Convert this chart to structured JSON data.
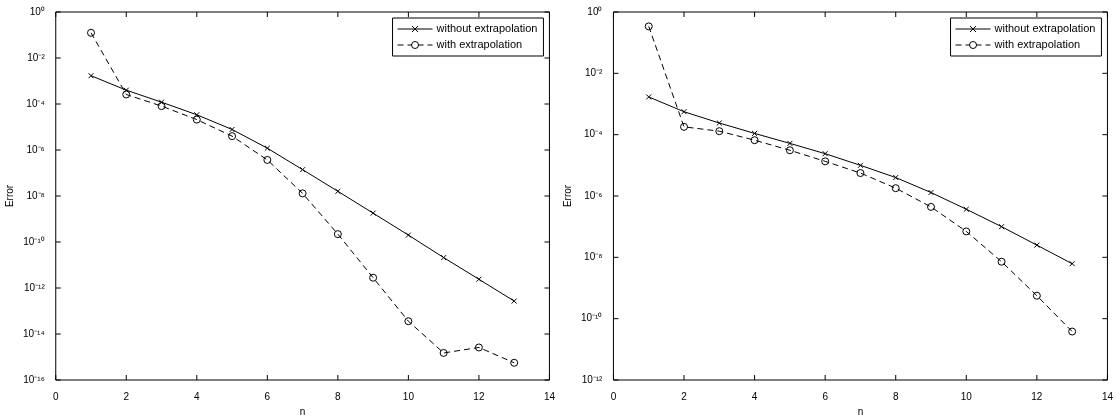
{
  "chart_data": [
    {
      "type": "line",
      "xlabel": "n",
      "ylabel": "Error",
      "log": "y",
      "legend": "top right",
      "x": [
        1,
        2,
        3,
        4,
        5,
        6,
        7,
        8,
        9,
        10,
        11,
        12,
        13
      ],
      "xlim": [
        0,
        14
      ],
      "xticks": [
        0,
        2,
        4,
        6,
        8,
        10,
        12,
        14
      ],
      "ylim": [
        1e-16,
        1
      ],
      "yticks": [
        {
          "value": 1e-16,
          "label": "10⁻¹⁶"
        },
        {
          "value": 1e-14,
          "label": "10⁻¹⁴"
        },
        {
          "value": 1e-12,
          "label": "10⁻¹²"
        },
        {
          "value": 1e-10,
          "label": "10⁻¹⁰"
        },
        {
          "value": 1e-08,
          "label": "10⁻⁸"
        },
        {
          "value": 1e-06,
          "label": "10⁻⁶"
        },
        {
          "value": 0.0001,
          "label": "10⁻⁴"
        },
        {
          "value": 0.01,
          "label": "10⁻²"
        },
        {
          "value": 1,
          "label": "10⁰"
        }
      ],
      "series": [
        {
          "name": "without extrapolation",
          "color": "#000000",
          "marker": "cross",
          "line_style": "solid",
          "values": [
            0.0017,
            0.0004,
            0.00012,
            3.4e-05,
            7.8e-06,
            1.2e-06,
            1.4e-07,
            1.6e-08,
            1.8e-09,
            2e-10,
            2.1e-11,
            2.4e-12,
            2.7e-13
          ]
        },
        {
          "name": "with extrapolation",
          "color": "#000000",
          "marker": "circle",
          "line_style": "dashed",
          "values": [
            0.125,
            0.00026,
            8.1e-05,
            2.1e-05,
            4e-06,
            3.7e-07,
            1.3e-08,
            2.2e-10,
            2.8e-12,
            3.6e-14,
            1.5e-15,
            2.6e-15,
            5.6e-16
          ]
        }
      ]
    },
    {
      "type": "line",
      "xlabel": "n",
      "ylabel": "Error",
      "log": "y",
      "legend": "top right",
      "x": [
        1,
        2,
        3,
        4,
        5,
        6,
        7,
        8,
        9,
        10,
        11,
        12,
        13
      ],
      "xlim": [
        0,
        14
      ],
      "xticks": [
        0,
        2,
        4,
        6,
        8,
        10,
        12,
        14
      ],
      "ylim": [
        1e-12,
        1
      ],
      "yticks": [
        {
          "value": 1e-12,
          "label": "10⁻¹²"
        },
        {
          "value": 1e-10,
          "label": "10⁻¹⁰"
        },
        {
          "value": 1e-08,
          "label": "10⁻⁸"
        },
        {
          "value": 1e-06,
          "label": "10⁻⁶"
        },
        {
          "value": 0.0001,
          "label": "10⁻⁴"
        },
        {
          "value": 0.01,
          "label": "10⁻²"
        },
        {
          "value": 1,
          "label": "10⁰"
        }
      ],
      "series": [
        {
          "name": "without extrapolation",
          "color": "#000000",
          "marker": "cross",
          "line_style": "solid",
          "values": [
            0.0017,
            0.00056,
            0.00024,
            0.00011,
            5.2e-05,
            2.4e-05,
            1e-05,
            4e-06,
            1.3e-06,
            3.7e-07,
            1e-07,
            2.5e-08,
            6.2e-09
          ]
        },
        {
          "name": "with extrapolation",
          "color": "#000000",
          "marker": "circle",
          "line_style": "dashed",
          "values": [
            0.34,
            0.00018,
            0.00013,
            6.6e-05,
            3.1e-05,
            1.35e-05,
            5.6e-06,
            1.8e-06,
            4.4e-07,
            7e-08,
            7.2e-09,
            5.6e-10,
            3.8e-11
          ]
        }
      ]
    }
  ]
}
